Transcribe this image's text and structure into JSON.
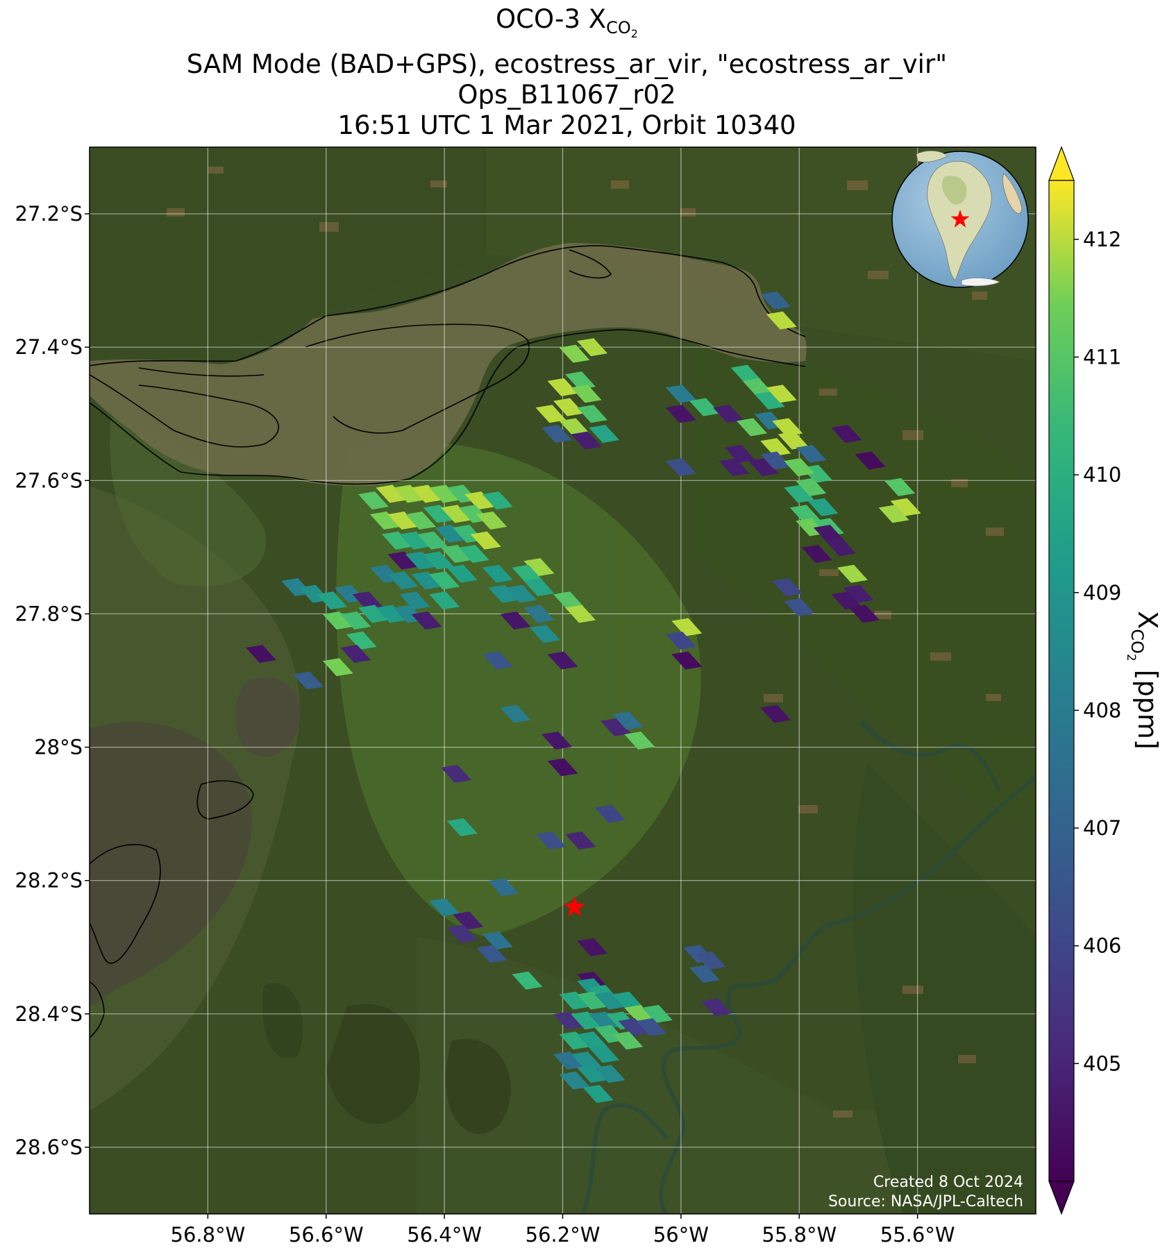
{
  "title": {
    "line1_prefix": "OCO-3 X",
    "line1_sub": "CO",
    "line1_subsub": "2",
    "line2": "SAM Mode (BAD+GPS), ecostress_ar_vir, \"ecostress_ar_vir\"",
    "line3": "Ops_B11067_r02",
    "line4": "16:51 UTC 1 Mar 2021, Orbit 10340"
  },
  "map": {
    "lon_range": [
      -57.0,
      -55.4
    ],
    "lat_range": [
      -28.7,
      -27.1
    ],
    "lon_ticks": [
      -56.8,
      -56.6,
      -56.4,
      -56.2,
      -56.0,
      -55.8,
      -55.6
    ],
    "lon_tick_labels": [
      "56.8°W",
      "56.6°W",
      "56.4°W",
      "56.2°W",
      "56°W",
      "55.8°W",
      "55.6°W"
    ],
    "lat_ticks": [
      -27.2,
      -27.4,
      -27.6,
      -27.8,
      -28.0,
      -28.2,
      -28.4,
      -28.6
    ],
    "lat_tick_labels": [
      "27.2°S",
      "27.4°S",
      "27.6°S",
      "27.8°S",
      "28°S",
      "28.2°S",
      "28.4°S",
      "28.6°S"
    ],
    "target_marker": {
      "lon": -56.18,
      "lat": -28.24,
      "color": "#ff0000",
      "icon": "star-icon"
    },
    "credit_line1": "Created 8 Oct 2024",
    "credit_line2": "Source: NASA/JPL-Caltech",
    "inset_icon": "globe-icon"
  },
  "colorbar": {
    "min": 404,
    "max": 412.5,
    "ticks": [
      405,
      406,
      407,
      408,
      409,
      410,
      411,
      412
    ],
    "tick_labels": [
      "405",
      "406",
      "407",
      "408",
      "409",
      "410",
      "411",
      "412"
    ],
    "label_prefix": "X",
    "label_sub": "CO",
    "label_subsub": "2",
    "label_suffix": " [ppm]",
    "colormap": "viridis",
    "extend": "both"
  },
  "soundings": [
    {
      "lon": -56.18,
      "lat": -27.41,
      "v": 411.6
    },
    {
      "lon": -56.15,
      "lat": -27.4,
      "v": 411.9
    },
    {
      "lon": -56.2,
      "lat": -27.46,
      "v": 412.0
    },
    {
      "lon": -56.17,
      "lat": -27.45,
      "v": 410.9
    },
    {
      "lon": -56.22,
      "lat": -27.5,
      "v": 412.0
    },
    {
      "lon": -56.19,
      "lat": -27.49,
      "v": 412.0
    },
    {
      "lon": -56.16,
      "lat": -27.47,
      "v": 411.5
    },
    {
      "lon": -56.21,
      "lat": -27.53,
      "v": 406.8
    },
    {
      "lon": -56.18,
      "lat": -27.52,
      "v": 411.8
    },
    {
      "lon": -56.15,
      "lat": -27.5,
      "v": 410.8
    },
    {
      "lon": -56.16,
      "lat": -27.54,
      "v": 404.8
    },
    {
      "lon": -56.13,
      "lat": -27.53,
      "v": 409.6
    },
    {
      "lon": -55.84,
      "lat": -27.33,
      "v": 407.0
    },
    {
      "lon": -55.83,
      "lat": -27.36,
      "v": 412.0
    },
    {
      "lon": -56.0,
      "lat": -27.47,
      "v": 408.0
    },
    {
      "lon": -56.0,
      "lat": -27.5,
      "v": 404.5
    },
    {
      "lon": -55.96,
      "lat": -27.49,
      "v": 410.5
    },
    {
      "lon": -55.92,
      "lat": -27.5,
      "v": 404.8
    },
    {
      "lon": -55.89,
      "lat": -27.44,
      "v": 410.2
    },
    {
      "lon": -55.87,
      "lat": -27.46,
      "v": 411.0
    },
    {
      "lon": -55.85,
      "lat": -27.48,
      "v": 410.0
    },
    {
      "lon": -55.83,
      "lat": -27.47,
      "v": 412.0
    },
    {
      "lon": -55.88,
      "lat": -27.52,
      "v": 411.2
    },
    {
      "lon": -55.85,
      "lat": -27.51,
      "v": 407.8
    },
    {
      "lon": -55.82,
      "lat": -27.52,
      "v": 412.0
    },
    {
      "lon": -55.84,
      "lat": -27.55,
      "v": 412.0
    },
    {
      "lon": -55.81,
      "lat": -27.54,
      "v": 412.0
    },
    {
      "lon": -55.86,
      "lat": -27.58,
      "v": 404.7
    },
    {
      "lon": -55.84,
      "lat": -27.57,
      "v": 406.5
    },
    {
      "lon": -55.9,
      "lat": -27.56,
      "v": 404.8
    },
    {
      "lon": -55.91,
      "lat": -27.58,
      "v": 404.8
    },
    {
      "lon": -56.0,
      "lat": -27.58,
      "v": 406.3
    },
    {
      "lon": -55.78,
      "lat": -27.56,
      "v": 407.2
    },
    {
      "lon": -55.77,
      "lat": -27.59,
      "v": 410.5
    },
    {
      "lon": -55.8,
      "lat": -27.58,
      "v": 411.3
    },
    {
      "lon": -55.8,
      "lat": -27.62,
      "v": 410.0
    },
    {
      "lon": -55.78,
      "lat": -27.61,
      "v": 411.0
    },
    {
      "lon": -55.79,
      "lat": -27.65,
      "v": 410.7
    },
    {
      "lon": -55.76,
      "lat": -27.64,
      "v": 409.5
    },
    {
      "lon": -55.78,
      "lat": -27.67,
      "v": 411.4
    },
    {
      "lon": -55.75,
      "lat": -27.67,
      "v": 410.7
    },
    {
      "lon": -55.72,
      "lat": -27.53,
      "v": 404.5
    },
    {
      "lon": -55.68,
      "lat": -27.57,
      "v": 404.3
    },
    {
      "lon": -55.63,
      "lat": -27.61,
      "v": 411.0
    },
    {
      "lon": -55.62,
      "lat": -27.64,
      "v": 412.0
    },
    {
      "lon": -55.64,
      "lat": -27.65,
      "v": 411.8
    },
    {
      "lon": -55.75,
      "lat": -27.68,
      "v": 404.6
    },
    {
      "lon": -55.73,
      "lat": -27.7,
      "v": 404.7
    },
    {
      "lon": -55.71,
      "lat": -27.74,
      "v": 411.8
    },
    {
      "lon": -55.7,
      "lat": -27.77,
      "v": 404.8
    },
    {
      "lon": -55.77,
      "lat": -27.71,
      "v": 404.4
    },
    {
      "lon": -55.82,
      "lat": -27.76,
      "v": 406.0
    },
    {
      "lon": -55.8,
      "lat": -27.79,
      "v": 406.4
    },
    {
      "lon": -55.72,
      "lat": -27.78,
      "v": 404.6
    },
    {
      "lon": -55.69,
      "lat": -27.8,
      "v": 404.4
    },
    {
      "lon": -55.99,
      "lat": -27.82,
      "v": 412.0
    },
    {
      "lon": -56.0,
      "lat": -27.84,
      "v": 406.0
    },
    {
      "lon": -55.99,
      "lat": -27.87,
      "v": 404.3
    },
    {
      "lon": -55.84,
      "lat": -27.95,
      "v": 404.5
    },
    {
      "lon": -56.52,
      "lat": -27.63,
      "v": 411.0
    },
    {
      "lon": -56.49,
      "lat": -27.62,
      "v": 412.0
    },
    {
      "lon": -56.46,
      "lat": -27.62,
      "v": 411.8
    },
    {
      "lon": -56.43,
      "lat": -27.62,
      "v": 412.0
    },
    {
      "lon": -56.4,
      "lat": -27.62,
      "v": 411.5
    },
    {
      "lon": -56.37,
      "lat": -27.62,
      "v": 410.8
    },
    {
      "lon": -56.34,
      "lat": -27.63,
      "v": 412.0
    },
    {
      "lon": -56.31,
      "lat": -27.63,
      "v": 410.0
    },
    {
      "lon": -56.5,
      "lat": -27.66,
      "v": 411.5
    },
    {
      "lon": -56.47,
      "lat": -27.66,
      "v": 412.0
    },
    {
      "lon": -56.44,
      "lat": -27.66,
      "v": 411.2
    },
    {
      "lon": -56.41,
      "lat": -27.65,
      "v": 410.2
    },
    {
      "lon": -56.38,
      "lat": -27.65,
      "v": 411.9
    },
    {
      "lon": -56.35,
      "lat": -27.65,
      "v": 411.0
    },
    {
      "lon": -56.32,
      "lat": -27.66,
      "v": 411.7
    },
    {
      "lon": -56.48,
      "lat": -27.69,
      "v": 410.5
    },
    {
      "lon": -56.45,
      "lat": -27.69,
      "v": 409.8
    },
    {
      "lon": -56.42,
      "lat": -27.69,
      "v": 410.6
    },
    {
      "lon": -56.39,
      "lat": -27.68,
      "v": 408.6
    },
    {
      "lon": -56.36,
      "lat": -27.68,
      "v": 410.5
    },
    {
      "lon": -56.33,
      "lat": -27.69,
      "v": 412.0
    },
    {
      "lon": -56.47,
      "lat": -27.72,
      "v": 404.5
    },
    {
      "lon": -56.44,
      "lat": -27.72,
      "v": 409.0
    },
    {
      "lon": -56.41,
      "lat": -27.72,
      "v": 409.5
    },
    {
      "lon": -56.38,
      "lat": -27.71,
      "v": 410.8
    },
    {
      "lon": -56.35,
      "lat": -27.71,
      "v": 410.2
    },
    {
      "lon": -56.43,
      "lat": -27.75,
      "v": 408.8
    },
    {
      "lon": -56.4,
      "lat": -27.75,
      "v": 410.4
    },
    {
      "lon": -56.37,
      "lat": -27.74,
      "v": 409.4
    },
    {
      "lon": -56.5,
      "lat": -27.74,
      "v": 408.0
    },
    {
      "lon": -56.47,
      "lat": -27.75,
      "v": 408.6
    },
    {
      "lon": -56.31,
      "lat": -27.74,
      "v": 409.2
    },
    {
      "lon": -56.3,
      "lat": -27.77,
      "v": 408.8
    },
    {
      "lon": -56.24,
      "lat": -27.73,
      "v": 411.8
    },
    {
      "lon": -56.26,
      "lat": -27.74,
      "v": 410.2
    },
    {
      "lon": -56.24,
      "lat": -27.76,
      "v": 409.6
    },
    {
      "lon": -56.27,
      "lat": -27.77,
      "v": 408.6
    },
    {
      "lon": -56.65,
      "lat": -27.76,
      "v": 408.2
    },
    {
      "lon": -56.62,
      "lat": -27.77,
      "v": 408.8
    },
    {
      "lon": -56.59,
      "lat": -27.78,
      "v": 409.5
    },
    {
      "lon": -56.56,
      "lat": -27.77,
      "v": 408.0
    },
    {
      "lon": -56.53,
      "lat": -27.78,
      "v": 404.9
    },
    {
      "lon": -56.58,
      "lat": -27.81,
      "v": 411.2
    },
    {
      "lon": -56.55,
      "lat": -27.81,
      "v": 410.6
    },
    {
      "lon": -56.52,
      "lat": -27.8,
      "v": 409.8
    },
    {
      "lon": -56.49,
      "lat": -27.8,
      "v": 409.2
    },
    {
      "lon": -56.46,
      "lat": -27.8,
      "v": 408.4
    },
    {
      "lon": -56.43,
      "lat": -27.81,
      "v": 404.8
    },
    {
      "lon": -56.54,
      "lat": -27.84,
      "v": 410.4
    },
    {
      "lon": -56.45,
      "lat": -27.78,
      "v": 408.5
    },
    {
      "lon": -56.4,
      "lat": -27.78,
      "v": 409.8
    },
    {
      "lon": -56.55,
      "lat": -27.86,
      "v": 404.9
    },
    {
      "lon": -56.58,
      "lat": -27.88,
      "v": 411.5
    },
    {
      "lon": -56.71,
      "lat": -27.86,
      "v": 404.4
    },
    {
      "lon": -56.63,
      "lat": -27.9,
      "v": 406.8
    },
    {
      "lon": -56.19,
      "lat": -27.78,
      "v": 411.0
    },
    {
      "lon": -56.17,
      "lat": -27.8,
      "v": 411.9
    },
    {
      "lon": -56.24,
      "lat": -27.8,
      "v": 407.8
    },
    {
      "lon": -56.23,
      "lat": -27.83,
      "v": 408.6
    },
    {
      "lon": -56.28,
      "lat": -27.81,
      "v": 404.6
    },
    {
      "lon": -56.31,
      "lat": -27.87,
      "v": 406.5
    },
    {
      "lon": -56.2,
      "lat": -27.87,
      "v": 404.6
    },
    {
      "lon": -56.28,
      "lat": -27.95,
      "v": 408.0
    },
    {
      "lon": -56.11,
      "lat": -27.97,
      "v": 405.0
    },
    {
      "lon": -56.09,
      "lat": -27.96,
      "v": 407.5
    },
    {
      "lon": -56.07,
      "lat": -27.99,
      "v": 411.2
    },
    {
      "lon": -56.21,
      "lat": -27.99,
      "v": 404.6
    },
    {
      "lon": -56.2,
      "lat": -28.03,
      "v": 404.4
    },
    {
      "lon": -56.38,
      "lat": -28.04,
      "v": 405.2
    },
    {
      "lon": -56.37,
      "lat": -28.12,
      "v": 409.8
    },
    {
      "lon": -56.12,
      "lat": -28.1,
      "v": 406.0
    },
    {
      "lon": -56.22,
      "lat": -28.14,
      "v": 406.3
    },
    {
      "lon": -56.17,
      "lat": -28.14,
      "v": 405.0
    },
    {
      "lon": -56.3,
      "lat": -28.21,
      "v": 407.4
    },
    {
      "lon": -56.4,
      "lat": -28.24,
      "v": 408.2
    },
    {
      "lon": -56.36,
      "lat": -28.26,
      "v": 404.8
    },
    {
      "lon": -56.37,
      "lat": -28.28,
      "v": 405.4
    },
    {
      "lon": -56.31,
      "lat": -28.29,
      "v": 407.6
    },
    {
      "lon": -56.32,
      "lat": -28.31,
      "v": 406.6
    },
    {
      "lon": -56.15,
      "lat": -28.3,
      "v": 404.5
    },
    {
      "lon": -56.26,
      "lat": -28.35,
      "v": 410.4
    },
    {
      "lon": -56.15,
      "lat": -28.35,
      "v": 404.4
    },
    {
      "lon": -55.97,
      "lat": -28.31,
      "v": 406.7
    },
    {
      "lon": -55.95,
      "lat": -28.32,
      "v": 406.4
    },
    {
      "lon": -55.96,
      "lat": -28.34,
      "v": 406.9
    },
    {
      "lon": -55.94,
      "lat": -28.39,
      "v": 405.2
    },
    {
      "lon": -56.15,
      "lat": -28.36,
      "v": 409.0
    },
    {
      "lon": -56.13,
      "lat": -28.37,
      "v": 409.6
    },
    {
      "lon": -56.18,
      "lat": -28.38,
      "v": 409.8
    },
    {
      "lon": -56.15,
      "lat": -28.38,
      "v": 410.5
    },
    {
      "lon": -56.12,
      "lat": -28.38,
      "v": 408.8
    },
    {
      "lon": -56.09,
      "lat": -28.38,
      "v": 409.4
    },
    {
      "lon": -56.19,
      "lat": -28.41,
      "v": 405.4
    },
    {
      "lon": -56.16,
      "lat": -28.41,
      "v": 409.8
    },
    {
      "lon": -56.13,
      "lat": -28.41,
      "v": 408.4
    },
    {
      "lon": -56.1,
      "lat": -28.41,
      "v": 410.0
    },
    {
      "lon": -56.07,
      "lat": -28.4,
      "v": 411.5
    },
    {
      "lon": -56.04,
      "lat": -28.4,
      "v": 410.6
    },
    {
      "lon": -56.08,
      "lat": -28.42,
      "v": 405.8
    },
    {
      "lon": -56.05,
      "lat": -28.42,
      "v": 406.4
    },
    {
      "lon": -56.18,
      "lat": -28.44,
      "v": 410.0
    },
    {
      "lon": -56.15,
      "lat": -28.44,
      "v": 409.4
    },
    {
      "lon": -56.12,
      "lat": -28.43,
      "v": 410.6
    },
    {
      "lon": -56.09,
      "lat": -28.44,
      "v": 411.0
    },
    {
      "lon": -56.19,
      "lat": -28.47,
      "v": 407.6
    },
    {
      "lon": -56.16,
      "lat": -28.47,
      "v": 408.8
    },
    {
      "lon": -56.13,
      "lat": -28.46,
      "v": 409.2
    },
    {
      "lon": -56.18,
      "lat": -28.5,
      "v": 408.4
    },
    {
      "lon": -56.15,
      "lat": -28.49,
      "v": 409.0
    },
    {
      "lon": -56.12,
      "lat": -28.49,
      "v": 408.6
    },
    {
      "lon": -56.14,
      "lat": -28.52,
      "v": 409.4
    }
  ]
}
